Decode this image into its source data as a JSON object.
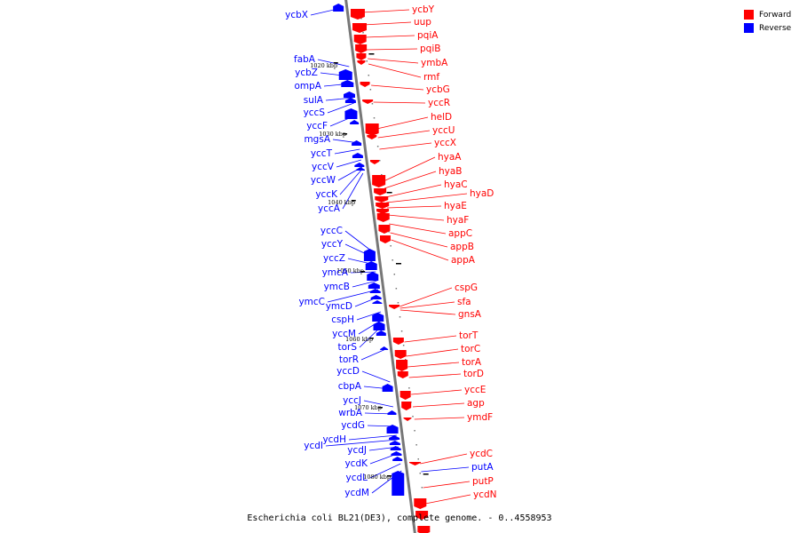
{
  "legend": {
    "forward_label": "Forward",
    "reverse_label": "Reverse",
    "forward_color": "#ff0000",
    "reverse_color": "#0000ff"
  },
  "caption": "Escherichia coli BL21(DE3), complete genome. - 0..4558953",
  "kbp_marks": [
    "1020 kbp",
    "1030 kbp",
    "1040 kbp",
    "1050 kbp",
    "1060 kbp",
    "1070 kbp",
    "1080 kbp"
  ],
  "forward_labels": [
    "ycbY",
    "uup",
    "pqiA",
    "pqiB",
    "ymbA",
    "rmf",
    "ycbG",
    "yccR",
    "helD",
    "yccU",
    "yccX",
    "hyaA",
    "hyaB",
    "hyaC",
    "hyaD",
    "hyaE",
    "hyaF",
    "appC",
    "appB",
    "appA",
    "cspG",
    "sfa",
    "gnsA",
    "torT",
    "torC",
    "torA",
    "torD",
    "yccE",
    "agp",
    "ymdF",
    "ycdC",
    "putA",
    "putP",
    "ycdN"
  ],
  "reverse_labels": [
    "ycbX",
    "fabA",
    "ycbZ",
    "ompA",
    "sulA",
    "yccS",
    "yccF",
    "mgsA",
    "yccT",
    "yccV",
    "yccW",
    "yccK",
    "yccA",
    "yccC",
    "yccY",
    "yccZ",
    "ymcA",
    "ymcB",
    "ymcC",
    "ymcD",
    "cspH",
    "yccM",
    "torS",
    "torR",
    "yccD",
    "cbpA",
    "yccJ",
    "wrbA",
    "ycdG",
    "ycdH",
    "ycdI",
    "ycdJ",
    "ycdK",
    "ycdL",
    "ycdM"
  ],
  "blue_labels": [
    "putA"
  ]
}
